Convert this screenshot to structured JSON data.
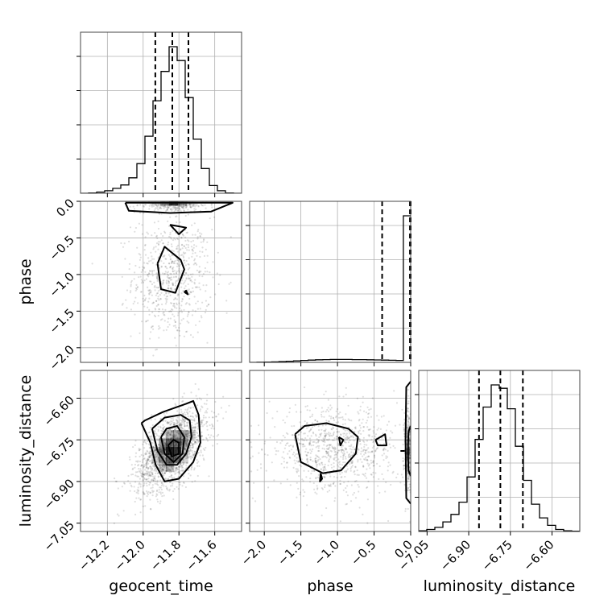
{
  "chart_data": {
    "type": "corner",
    "parameters": [
      "geocent_time",
      "phase",
      "luminosity_distance"
    ],
    "ranges": {
      "geocent_time": [
        -12.35,
        -11.45
      ],
      "phase": [
        -2.2,
        0.0
      ],
      "luminosity_distance": [
        -7.08,
        -6.5
      ]
    },
    "ticks": {
      "geocent_time": [
        "−12.2",
        "−12.0",
        "−11.8",
        "−11.6"
      ],
      "phase": [
        "−2.0",
        "−1.5",
        "−1.0",
        "−0.5",
        "0.0"
      ],
      "luminosity_distance": [
        "−7.05",
        "−6.90",
        "−6.75",
        "−6.60"
      ]
    },
    "tick_values": {
      "geocent_time": [
        -12.2,
        -12.0,
        -11.8,
        -11.6
      ],
      "phase": [
        -2.0,
        -1.5,
        -1.0,
        -0.5,
        0.0
      ],
      "luminosity_distance": [
        -7.05,
        -6.9,
        -6.75,
        -6.6
      ]
    },
    "quantiles": {
      "geocent_time": [
        -11.932,
        -11.837,
        -11.747
      ],
      "phase": [
        -0.39,
        -0.01,
        0.0
      ],
      "luminosity_distance": [
        -6.863,
        -6.786,
        -6.705
      ]
    },
    "histograms": {
      "geocent_time": {
        "edges": [
          -12.35,
          -12.305,
          -12.26,
          -12.215,
          -12.17,
          -12.125,
          -12.08,
          -12.035,
          -11.99,
          -11.945,
          -11.9,
          -11.855,
          -11.81,
          -11.765,
          -11.72,
          -11.675,
          -11.63,
          -11.585,
          -11.54,
          -11.495,
          -11.45
        ],
        "counts": [
          0,
          1,
          4,
          8,
          16,
          27,
          50,
          96,
          185,
          300,
          395,
          475,
          430,
          310,
          175,
          80,
          25,
          8,
          1,
          0
        ]
      },
      "phase": {
        "edges": [
          -2.2,
          -2.1,
          -2.0,
          -1.9,
          -1.8,
          -1.7,
          -1.6,
          -1.5,
          -1.4,
          -1.3,
          -1.2,
          -1.1,
          -1.0,
          -0.9,
          -0.8,
          -0.7,
          -0.6,
          -0.5,
          -0.4,
          -0.3,
          -0.2,
          -0.1,
          0.0
        ],
        "counts": [
          0,
          1,
          2,
          3,
          5,
          7,
          9,
          12,
          14,
          16,
          17,
          18,
          18,
          18,
          17,
          17,
          16,
          15,
          14,
          13,
          12,
          900
        ]
      },
      "luminosity_distance": {
        "edges": [
          -7.08,
          -7.051,
          -7.022,
          -6.993,
          -6.964,
          -6.935,
          -6.906,
          -6.877,
          -6.848,
          -6.819,
          -6.79,
          -6.761,
          -6.732,
          -6.703,
          -6.674,
          -6.645,
          -6.616,
          -6.587,
          -6.558,
          -6.529,
          -6.5
        ],
        "counts": [
          2,
          6,
          12,
          28,
          50,
          86,
          160,
          270,
          365,
          430,
          420,
          360,
          250,
          150,
          80,
          40,
          18,
          6,
          2,
          1
        ]
      }
    },
    "scatter_2d": [
      {
        "x": "geocent_time",
        "y": "phase",
        "clusters": [
          {
            "cx": -11.84,
            "cy": -1.05,
            "sx": 0.11,
            "sy": 0.42,
            "rho": 0.0,
            "n": 700
          },
          {
            "cx": -11.84,
            "cy": -0.05,
            "sx": 0.1,
            "sy": 0.05,
            "rho": 0.0,
            "n": 250
          }
        ],
        "density_cells": [
          {
            "x": -11.83,
            "y": -0.03,
            "w": 0.05,
            "h": 0.06,
            "level": 0.9
          },
          {
            "x": -11.88,
            "y": -0.03,
            "w": 0.05,
            "h": 0.06,
            "level": 0.45
          },
          {
            "x": -11.78,
            "y": -0.03,
            "w": 0.05,
            "h": 0.06,
            "level": 0.45
          },
          {
            "x": -11.93,
            "y": -0.03,
            "w": 0.05,
            "h": 0.06,
            "level": 0.15
          },
          {
            "x": -11.73,
            "y": -0.03,
            "w": 0.05,
            "h": 0.06,
            "level": 0.15
          }
        ],
        "contours": [
          [
            [
              -12.1,
              -0.02
            ],
            [
              -11.5,
              -0.02
            ],
            [
              -11.62,
              -0.14
            ],
            [
              -11.85,
              -0.16
            ],
            [
              -12.08,
              -0.13
            ],
            [
              -12.1,
              -0.02
            ]
          ],
          [
            [
              -11.85,
              -0.32
            ],
            [
              -11.8,
              -0.45
            ],
            [
              -11.76,
              -0.36
            ],
            [
              -11.85,
              -0.32
            ]
          ],
          [
            [
              -11.92,
              -0.85
            ],
            [
              -11.88,
              -0.62
            ],
            [
              -11.79,
              -0.8
            ],
            [
              -11.77,
              -0.93
            ],
            [
              -11.82,
              -1.25
            ],
            [
              -11.9,
              -1.2
            ],
            [
              -11.92,
              -0.85
            ]
          ],
          [
            [
              -11.77,
              -1.24
            ],
            [
              -11.75,
              -1.27
            ],
            [
              -11.76,
              -1.22
            ],
            [
              -11.77,
              -1.24
            ]
          ]
        ]
      },
      {
        "x": "geocent_time",
        "y": "luminosity_distance",
        "clusters": [
          {
            "cx": -11.84,
            "cy": -6.786,
            "sx": 0.1,
            "sy": 0.075,
            "rho": 0.55,
            "n": 1600
          }
        ],
        "density_cells": [
          {
            "x": -11.85,
            "y": -6.79,
            "w": 0.045,
            "h": 0.03,
            "level": 1.0
          },
          {
            "x": -11.81,
            "y": -6.79,
            "w": 0.045,
            "h": 0.03,
            "level": 0.9
          },
          {
            "x": -11.85,
            "y": -6.76,
            "w": 0.045,
            "h": 0.03,
            "level": 0.7
          },
          {
            "x": -11.81,
            "y": -6.76,
            "w": 0.045,
            "h": 0.03,
            "level": 0.6
          },
          {
            "x": -11.85,
            "y": -6.82,
            "w": 0.045,
            "h": 0.03,
            "level": 0.7
          },
          {
            "x": -11.81,
            "y": -6.82,
            "w": 0.045,
            "h": 0.03,
            "level": 0.55
          },
          {
            "x": -11.89,
            "y": -6.79,
            "w": 0.045,
            "h": 0.03,
            "level": 0.55
          },
          {
            "x": -11.77,
            "y": -6.76,
            "w": 0.045,
            "h": 0.03,
            "level": 0.45
          },
          {
            "x": -11.77,
            "y": -6.73,
            "w": 0.045,
            "h": 0.03,
            "level": 0.35
          },
          {
            "x": -11.89,
            "y": -6.82,
            "w": 0.045,
            "h": 0.03,
            "level": 0.35
          },
          {
            "x": -11.81,
            "y": -6.73,
            "w": 0.045,
            "h": 0.03,
            "level": 0.35
          },
          {
            "x": -11.89,
            "y": -6.85,
            "w": 0.045,
            "h": 0.03,
            "level": 0.2
          },
          {
            "x": -11.85,
            "y": -6.85,
            "w": 0.045,
            "h": 0.03,
            "level": 0.3
          },
          {
            "x": -11.93,
            "y": -6.82,
            "w": 0.045,
            "h": 0.03,
            "level": 0.2
          },
          {
            "x": -11.73,
            "y": -6.73,
            "w": 0.045,
            "h": 0.03,
            "level": 0.2
          },
          {
            "x": -11.77,
            "y": -6.79,
            "w": 0.045,
            "h": 0.03,
            "level": 0.3
          },
          {
            "x": -11.93,
            "y": -6.79,
            "w": 0.045,
            "h": 0.03,
            "level": 0.25
          },
          {
            "x": -11.85,
            "y": -6.73,
            "w": 0.045,
            "h": 0.03,
            "level": 0.3
          },
          {
            "x": -11.89,
            "y": -6.76,
            "w": 0.045,
            "h": 0.03,
            "level": 0.4
          },
          {
            "x": -11.77,
            "y": -6.82,
            "w": 0.045,
            "h": 0.03,
            "level": 0.2
          }
        ],
        "contours": [
          [
            [
              -12.01,
              -6.69
            ],
            [
              -11.96,
              -6.76
            ],
            [
              -11.93,
              -6.84
            ],
            [
              -11.88,
              -6.9
            ],
            [
              -11.8,
              -6.89
            ],
            [
              -11.72,
              -6.83
            ],
            [
              -11.68,
              -6.76
            ],
            [
              -11.69,
              -6.66
            ],
            [
              -11.72,
              -6.61
            ],
            [
              -11.76,
              -6.62
            ],
            [
              -11.89,
              -6.65
            ],
            [
              -11.99,
              -6.68
            ],
            [
              -12.01,
              -6.69
            ]
          ],
          [
            [
              -11.95,
              -6.71
            ],
            [
              -11.92,
              -6.79
            ],
            [
              -11.87,
              -6.84
            ],
            [
              -11.81,
              -6.84
            ],
            [
              -11.76,
              -6.8
            ],
            [
              -11.73,
              -6.74
            ],
            [
              -11.74,
              -6.68
            ],
            [
              -11.79,
              -6.66
            ],
            [
              -11.88,
              -6.67
            ],
            [
              -11.95,
              -6.71
            ]
          ],
          [
            [
              -11.9,
              -6.74
            ],
            [
              -11.88,
              -6.8
            ],
            [
              -11.83,
              -6.83
            ],
            [
              -11.78,
              -6.8
            ],
            [
              -11.77,
              -6.74
            ],
            [
              -11.81,
              -6.7
            ],
            [
              -11.87,
              -6.71
            ],
            [
              -11.9,
              -6.74
            ]
          ],
          [
            [
              -11.86,
              -6.77
            ],
            [
              -11.84,
              -6.81
            ],
            [
              -11.8,
              -6.8
            ],
            [
              -11.8,
              -6.76
            ],
            [
              -11.83,
              -6.75
            ],
            [
              -11.86,
              -6.77
            ]
          ]
        ]
      },
      {
        "x": "phase",
        "y": "luminosity_distance",
        "clusters": [
          {
            "cx": -1.05,
            "cy": -6.786,
            "sx": 0.45,
            "sy": 0.075,
            "rho": 0.0,
            "n": 900
          },
          {
            "cx": -0.03,
            "cy": -6.786,
            "sx": 0.03,
            "sy": 0.08,
            "rho": 0.0,
            "n": 350
          }
        ],
        "density_cells": [
          {
            "x": -0.03,
            "y": -6.79,
            "w": 0.03,
            "h": 0.03,
            "level": 0.9
          },
          {
            "x": -0.03,
            "y": -6.76,
            "w": 0.03,
            "h": 0.03,
            "level": 0.55
          },
          {
            "x": -0.03,
            "y": -6.82,
            "w": 0.03,
            "h": 0.03,
            "level": 0.55
          },
          {
            "x": -0.03,
            "y": -6.73,
            "w": 0.03,
            "h": 0.03,
            "level": 0.3
          },
          {
            "x": -0.03,
            "y": -6.85,
            "w": 0.03,
            "h": 0.03,
            "level": 0.3
          },
          {
            "x": -0.03,
            "y": -6.7,
            "w": 0.03,
            "h": 0.03,
            "level": 0.15
          },
          {
            "x": -0.03,
            "y": -6.88,
            "w": 0.03,
            "h": 0.03,
            "level": 0.15
          }
        ],
        "contours": [
          [
            [
              -1.58,
              -6.73
            ],
            [
              -1.5,
              -6.83
            ],
            [
              -1.2,
              -6.87
            ],
            [
              -0.95,
              -6.86
            ],
            [
              -0.75,
              -6.8
            ],
            [
              -0.72,
              -6.74
            ],
            [
              -0.85,
              -6.71
            ],
            [
              -1.15,
              -6.69
            ],
            [
              -1.45,
              -6.7
            ],
            [
              -1.58,
              -6.73
            ]
          ],
          [
            [
              -0.98,
              -6.74
            ],
            [
              -0.92,
              -6.75
            ],
            [
              -0.96,
              -6.77
            ],
            [
              -0.98,
              -6.74
            ]
          ],
          [
            [
              -0.48,
              -6.75
            ],
            [
              -0.35,
              -6.73
            ],
            [
              -0.33,
              -6.77
            ],
            [
              -0.45,
              -6.77
            ],
            [
              -0.48,
              -6.75
            ]
          ],
          [
            [
              -1.23,
              -6.87
            ],
            [
              -1.21,
              -6.89
            ],
            [
              -1.24,
              -6.9
            ],
            [
              -1.23,
              -6.87
            ]
          ],
          [
            [
              -0.14,
              -6.79
            ],
            [
              -0.08,
              -6.79
            ]
          ],
          [
            [
              0.0,
              -6.54
            ],
            [
              -0.06,
              -6.56
            ],
            [
              -0.07,
              -6.75
            ],
            [
              -0.06,
              -6.96
            ],
            [
              0.0,
              -6.98
            ]
          ],
          [
            [
              0.0,
              -6.7
            ],
            [
              -0.03,
              -6.72
            ],
            [
              -0.04,
              -6.79
            ],
            [
              -0.03,
              -6.86
            ],
            [
              0.0,
              -6.88
            ]
          ]
        ]
      }
    ],
    "xlabel_bottom": [
      "geocent_time",
      "phase",
      "luminosity_distance"
    ],
    "ylabel_left": [
      "phase",
      "luminosity_distance"
    ],
    "grid": true,
    "legend": "none",
    "colors": {
      "line": "#000000",
      "scatter": "#000000",
      "grid": "#b0b0b0",
      "frame": "#000000",
      "background": "#ffffff"
    }
  }
}
